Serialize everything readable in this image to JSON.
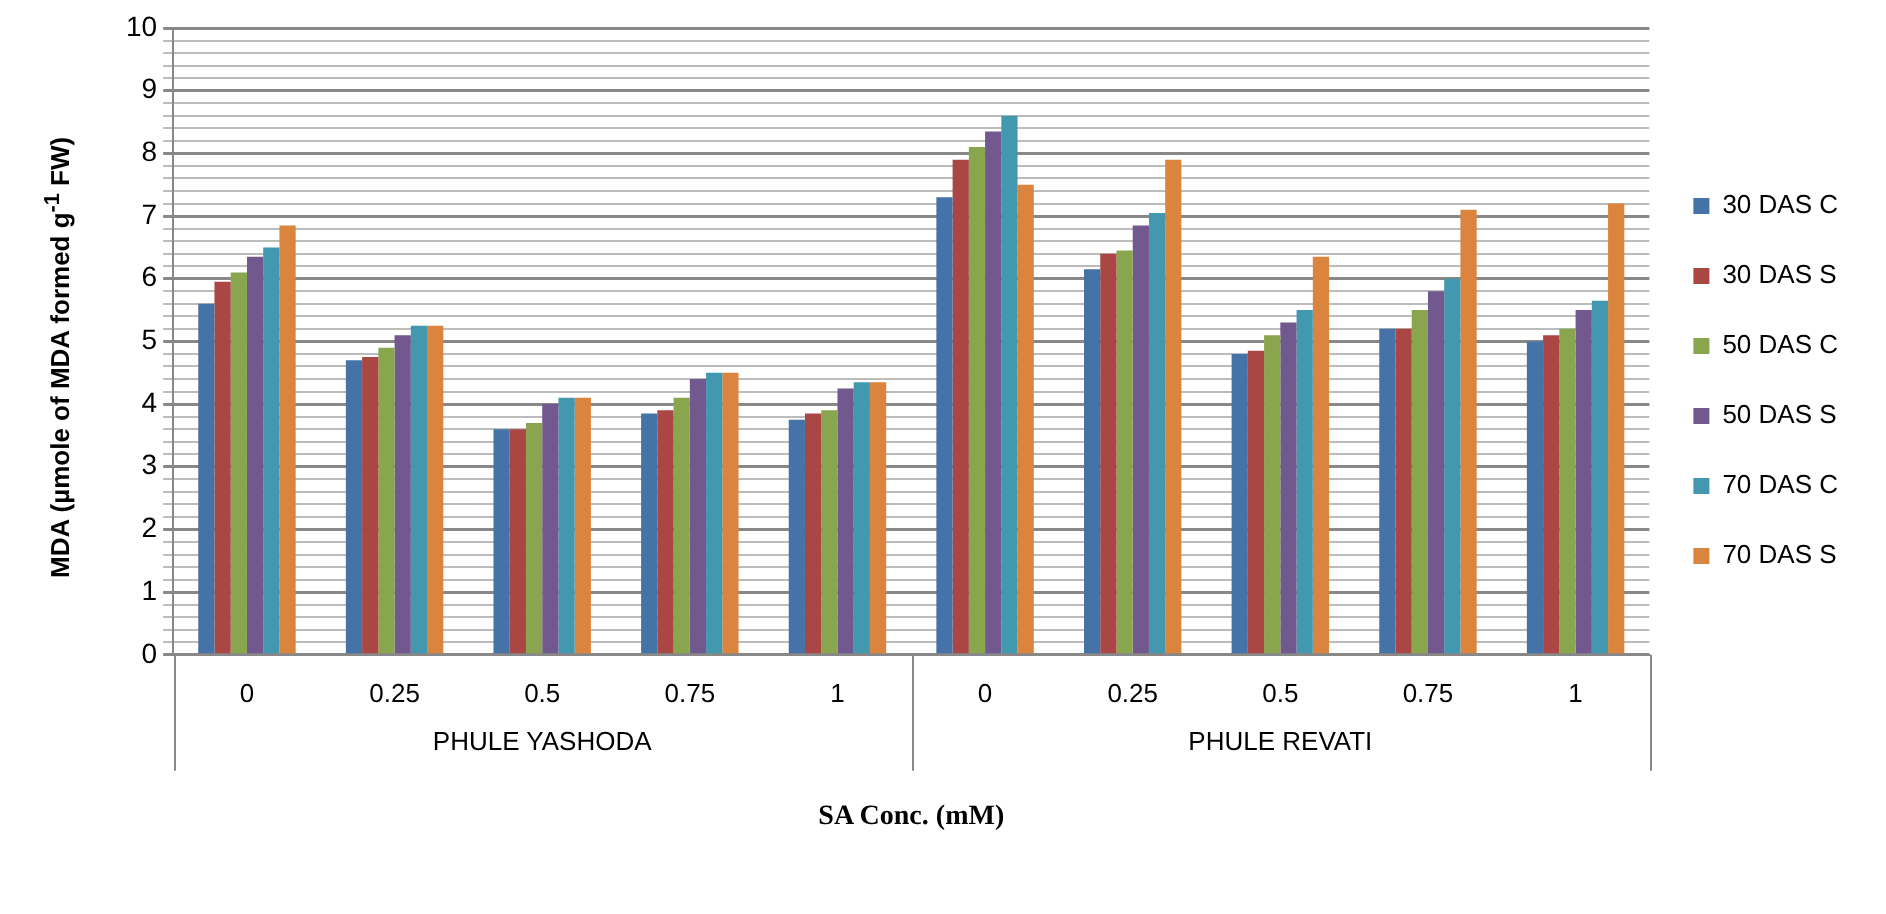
{
  "chart_data": {
    "type": "bar",
    "xlabel": "SA Conc. (mM)",
    "ylabel": "MDA (µmole of MDA formed g$^{-1}$ FW)",
    "categories": [
      "0",
      "0.25",
      "0.5",
      "0.75",
      "1",
      "0",
      "0.25",
      "0.5",
      "0.75",
      "1"
    ],
    "annotations": [
      "PHULE YASHODA",
      "PHULE REVATI"
    ],
    "series": [
      {
        "name": "30 DAS C",
        "color": "#4572a7",
        "values": [
          5.6,
          4.7,
          3.6,
          3.85,
          3.75,
          7.3,
          6.15,
          4.8,
          5.2,
          5.0
        ]
      },
      {
        "name": "30 DAS S",
        "color": "#aa4643",
        "values": [
          5.95,
          4.75,
          3.6,
          3.9,
          3.85,
          7.9,
          6.4,
          4.85,
          5.2,
          5.1
        ]
      },
      {
        "name": "50 DAS C",
        "color": "#89a54e",
        "values": [
          6.1,
          4.9,
          3.7,
          4.1,
          3.9,
          8.1,
          6.45,
          5.1,
          5.5,
          5.2
        ]
      },
      {
        "name": "50 DAS S",
        "color": "#71588f",
        "values": [
          6.35,
          5.1,
          4.0,
          4.4,
          4.25,
          8.35,
          6.85,
          5.3,
          5.8,
          5.5
        ]
      },
      {
        "name": "70 DAS C",
        "color": "#4198af",
        "values": [
          6.5,
          5.25,
          4.1,
          4.5,
          4.35,
          8.6,
          7.05,
          5.5,
          6.0,
          5.65
        ]
      },
      {
        "name": "70 DAS S",
        "color": "#db843d",
        "values": [
          6.85,
          5.25,
          4.1,
          4.5,
          4.35,
          7.5,
          7.9,
          6.35,
          7.1,
          7.2
        ]
      }
    ],
    "ylim": [
      0,
      10
    ],
    "yticks": [
      0,
      {
        "value": 0.2,
        "label": null
      },
      {
        "value": 0.4,
        "label": null
      },
      {
        "value": 0.6,
        "label": null
      },
      {
        "value": 0.8,
        "label": null
      },
      1,
      {
        "value": 1.2,
        "label": null
      },
      {
        "value": 1.4,
        "label": null
      },
      {
        "value": 1.6,
        "label": null
      },
      {
        "value": 1.8,
        "label": null
      },
      2,
      {
        "value": 2.2,
        "label": null
      },
      {
        "value": 2.4,
        "label": null
      },
      {
        "value": 2.6,
        "label": null
      },
      {
        "value": 2.8,
        "label": null
      },
      3,
      {
        "value": 3.2,
        "label": null
      },
      {
        "value": 3.4,
        "label": null
      },
      {
        "value": 3.6,
        "label": null
      },
      {
        "value": 3.8,
        "label": null
      },
      4,
      {
        "value": 4.2,
        "label": null
      },
      {
        "value": 4.4,
        "label": null
      },
      {
        "value": 4.6,
        "label": null
      },
      {
        "value": 4.8,
        "label": null
      },
      5,
      {
        "value": 5.2,
        "label": null
      },
      {
        "value": 5.4,
        "label": null
      },
      {
        "value": 5.6,
        "label": null
      },
      {
        "value": 5.8,
        "label": null
      },
      6,
      {
        "value": 6.2,
        "label": null
      },
      {
        "value": 6.4,
        "label": null
      },
      {
        "value": 6.6,
        "label": null
      },
      {
        "value": 6.8,
        "label": null
      },
      7,
      {
        "value": 7.2,
        "label": null
      },
      {
        "value": 7.4,
        "label": null
      },
      {
        "value": 7.6,
        "label": null
      },
      {
        "value": 7.8,
        "label": null
      },
      8,
      {
        "value": 8.2,
        "label": null
      },
      {
        "value": 8.4,
        "label": null
      },
      {
        "value": 8.6,
        "label": null
      },
      {
        "value": 8.8,
        "label": null
      },
      9,
      {
        "value": 9.2,
        "label": null
      },
      {
        "value": 9.4,
        "label": null
      },
      {
        "value": 9.6,
        "label": null
      },
      {
        "value": 9.8,
        "label": null
      },
      10
    ],
    "grid": "y",
    "legend": "right"
  }
}
